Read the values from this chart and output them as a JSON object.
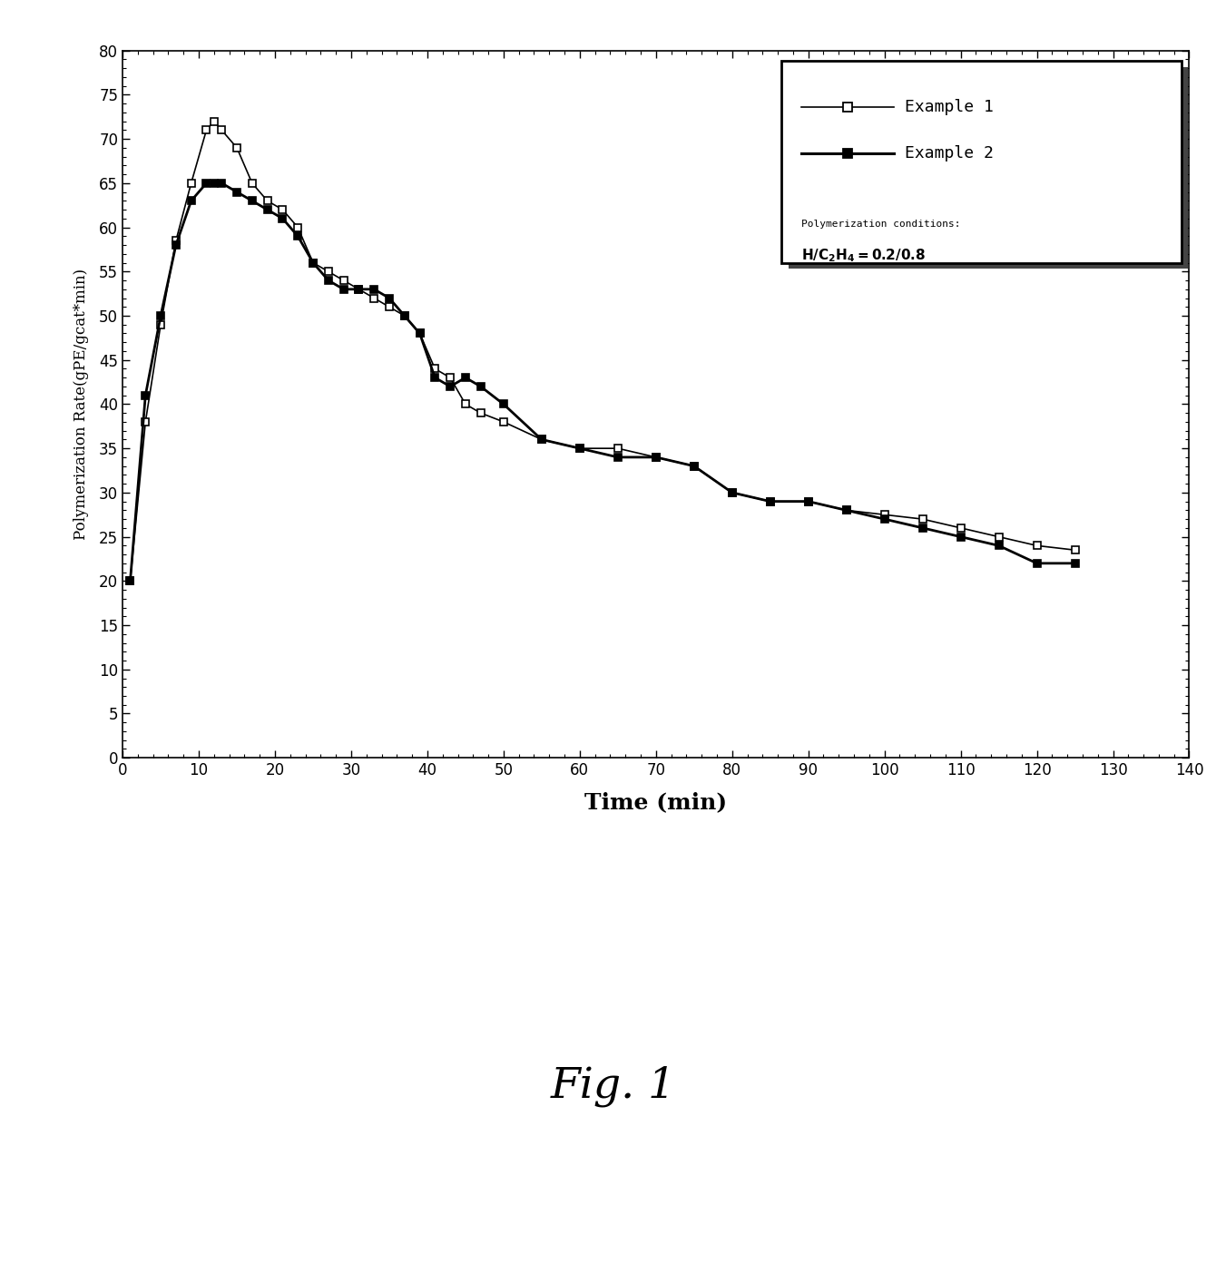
{
  "example1_x": [
    1,
    3,
    5,
    7,
    9,
    11,
    12,
    13,
    15,
    17,
    19,
    21,
    23,
    25,
    27,
    29,
    31,
    33,
    35,
    37,
    39,
    41,
    43,
    45,
    47,
    50,
    55,
    60,
    65,
    70,
    75,
    80,
    85,
    90,
    95,
    100,
    105,
    110,
    115,
    120,
    125
  ],
  "example1_y": [
    20,
    38,
    49,
    58.5,
    65,
    71,
    72,
    71,
    69,
    65,
    63,
    62,
    60,
    56,
    55,
    54,
    53,
    52,
    51,
    50,
    48,
    44,
    43,
    40,
    39,
    38,
    36,
    35,
    35,
    34,
    33,
    30,
    29,
    29,
    28,
    27.5,
    27,
    26,
    25,
    24,
    23.5
  ],
  "example2_x": [
    1,
    3,
    5,
    7,
    9,
    11,
    12,
    13,
    15,
    17,
    19,
    21,
    23,
    25,
    27,
    29,
    31,
    33,
    35,
    37,
    39,
    41,
    43,
    45,
    47,
    50,
    55,
    60,
    65,
    70,
    75,
    80,
    85,
    90,
    95,
    100,
    105,
    110,
    115,
    120,
    125
  ],
  "example2_y": [
    20,
    41,
    50,
    58,
    63,
    65,
    65,
    65,
    64,
    63,
    62,
    61,
    59,
    56,
    54,
    53,
    53,
    53,
    52,
    50,
    48,
    43,
    42,
    43,
    42,
    40,
    36,
    35,
    34,
    34,
    33,
    30,
    29,
    29,
    28,
    27,
    26,
    25,
    24,
    22,
    22
  ],
  "xlabel": "Time (min)",
  "ylabel": "Polymerization Rate(gPE/gcat*min)",
  "xlim": [
    0,
    140
  ],
  "ylim": [
    0,
    80
  ],
  "xticks": [
    0,
    10,
    20,
    30,
    40,
    50,
    60,
    70,
    80,
    90,
    100,
    110,
    120,
    130,
    140
  ],
  "yticks": [
    0,
    5,
    10,
    15,
    20,
    25,
    30,
    35,
    40,
    45,
    50,
    55,
    60,
    65,
    70,
    75,
    80
  ],
  "legend_label1": "Example 1",
  "legend_label2": "Example 2",
  "condition_label": "Polymerization conditions:",
  "condition_formula": "H/C$_2$H$_4$=0.2/0.8",
  "fig_label": "Fig. 1",
  "line1_color": "#000000",
  "line2_color": "#000000",
  "background_color": "#ffffff"
}
